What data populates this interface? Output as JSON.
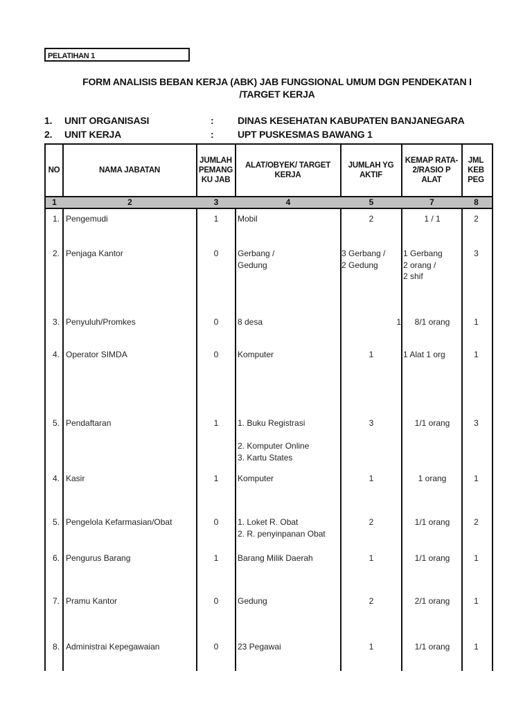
{
  "label": "PELATIHAN 1",
  "title_line1": "FORM  ANALISIS BEBAN KERJA (ABK) JAB FUNGSIONAL UMUM DGN PENDEKATAN  I",
  "title_line2": "/TARGET KERJA",
  "info": [
    {
      "no": "1.",
      "label": "UNIT ORGANISASI",
      "sep": ":",
      "value": "DINAS KESEHATAN KABUPATEN BANJANEGARA"
    },
    {
      "no": "2.",
      "label": "UNIT KERJA",
      "sep": ":",
      "value": "UPT PUSKESMAS BAWANG 1"
    }
  ],
  "table": {
    "headers": [
      "NO",
      "NAMA JABATAN",
      "JUMLAH PEMANG KU JAB",
      "ALAT/OBYEK/ TARGET KERJA",
      "JUMLAH   YG AKTIF",
      "KEMAP RATA-2/RASIO P ALAT",
      "JML KEB PEG"
    ],
    "column_numbers": [
      "1",
      "2",
      "3",
      "4",
      "5",
      "7",
      "8"
    ],
    "header_bg": "#c0c0c0",
    "rows": [
      {
        "no": "1.",
        "nama": "Pengemudi",
        "jumlah": "1",
        "alat": "Mobil",
        "aktif": "2",
        "rasio": "1 / 1",
        "keb": "2"
      },
      {
        "no": "2.",
        "nama": "Penjaga Kantor",
        "jumlah": "0",
        "alat": "Gerbang /\nGedung",
        "aktif": "3 Gerbang /\n2 Gedung",
        "rasio": "1 Gerbang\n2 orang /\n2 shif",
        "keb": "3"
      },
      {
        "no": "3.",
        "nama": "Penyuluh/Promkes",
        "jumlah": "0",
        "alat": "8 desa",
        "aktif": "1",
        "rasio": "8/1 orang",
        "keb": "1"
      },
      {
        "no": "4.",
        "nama": "Operator SIMDA",
        "jumlah": "0",
        "alat": "Komputer",
        "aktif": "1",
        "rasio": "1 Alat 1 org",
        "keb": "1"
      },
      {
        "no": "5.",
        "nama": "Pendaftaran",
        "jumlah": "1",
        "alat": "1. Buku Registrasi\n\n2. Komputer Online\n3. Kartu States",
        "aktif": "3",
        "rasio": "1/1 orang",
        "keb": "3"
      },
      {
        "no": "4.",
        "nama": "Kasir",
        "jumlah": "1",
        "alat": "Komputer",
        "aktif": "1",
        "rasio": "1 orang",
        "keb": "1"
      },
      {
        "no": "5.",
        "nama": "Pengelola Kefarmasian/Obat",
        "jumlah": "0",
        "alat": "1. Loket R. Obat\n2. R. penyinpanan Obat",
        "aktif": "2",
        "rasio": "1/1 orang",
        "keb": "2"
      },
      {
        "no": "6.",
        "nama": "Pengurus Barang",
        "jumlah": "1",
        "alat": "Barang Milik Daerah",
        "aktif": "1",
        "rasio": "1/1 orang",
        "keb": "1"
      },
      {
        "no": "7.",
        "nama": "Pramu Kantor",
        "jumlah": "0",
        "alat": "Gedung",
        "aktif": "2",
        "rasio": "2/1 orang",
        "keb": "1"
      },
      {
        "no": "8.",
        "nama": "Administrai Kepegawaian",
        "jumlah": "0",
        "alat": "23 Pegawai",
        "aktif": "1",
        "rasio": "1/1 orang",
        "keb": "1"
      }
    ]
  }
}
